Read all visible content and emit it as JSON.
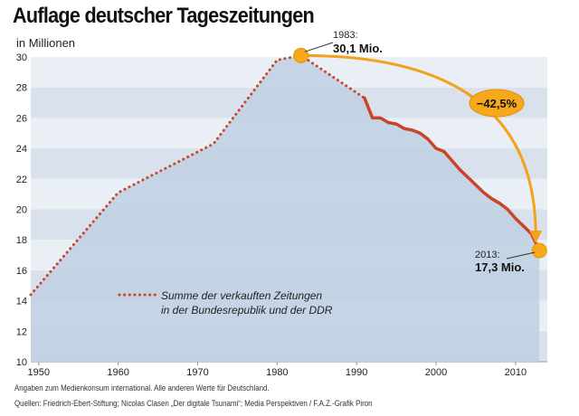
{
  "header": {
    "title": "Auflage deutscher Tageszeitungen",
    "unit": "in Millionen"
  },
  "chart_data": {
    "type": "line",
    "title": "Auflage deutscher Tageszeitungen",
    "ylabel": "in Millionen",
    "xlim": [
      1949,
      2014
    ],
    "ylim": [
      10,
      30
    ],
    "yticks": [
      10,
      12,
      14,
      16,
      18,
      20,
      22,
      24,
      26,
      28,
      30
    ],
    "xticks": [
      1950,
      1960,
      1970,
      1980,
      1990,
      2000,
      2010
    ],
    "grid": "horizontal bands",
    "legend": "Summe der verkauften Zeitungen in der Bundesrepublik und der DDR",
    "legend_lines": [
      "Summe der verkauften Zeitungen",
      "in der Bundesrepublik und der DDR"
    ],
    "series": [
      {
        "name": "Summe der verkauften Zeitungen in der Bundesrepublik und der DDR",
        "segments": [
          {
            "style": "dotted",
            "x": [
              1949,
              1960,
              1972,
              1980,
              1983,
              1991
            ],
            "y": [
              14.4,
              21.1,
              24.3,
              29.8,
              30.1,
              27.3
            ]
          },
          {
            "style": "solid",
            "x": [
              1991,
              1992,
              1993,
              1994,
              1995,
              1996,
              1997,
              1998,
              1999,
              2000,
              2001,
              2002,
              2003,
              2004,
              2005,
              2006,
              2007,
              2008,
              2009,
              2010,
              2011,
              2012,
              2013
            ],
            "y": [
              27.3,
              26.0,
              26.0,
              25.7,
              25.6,
              25.3,
              25.2,
              25.0,
              24.6,
              24.0,
              23.8,
              23.2,
              22.6,
              22.1,
              21.6,
              21.1,
              20.7,
              20.4,
              20.0,
              19.4,
              18.9,
              18.4,
              17.3
            ]
          }
        ]
      }
    ],
    "annotations": [
      {
        "year": "1983:",
        "value": "30,1 Mio.",
        "x": 1983,
        "y": 30.1
      },
      {
        "year": "2013:",
        "value": "17,3 Mio.",
        "x": 2013,
        "y": 17.3
      }
    ],
    "change_label": "−42,5%",
    "colors": {
      "band_dark": "#d9e2ec",
      "band_light": "#eaeff5",
      "area": "#c0d0e2",
      "line": "#c8442a",
      "highlight": "#f7a91b",
      "arrow": "#f2a21c"
    }
  },
  "footer": {
    "note": "Angaben zum Medienkonsum international. Alle anderen Werte für Deutschland.",
    "source": "Quellen: Friedrich-Ebert-Stiftung; Nicolas Clasen „Der digitale Tsunami“; Media Perspektiven / F.A.Z.-Grafik Piron"
  }
}
